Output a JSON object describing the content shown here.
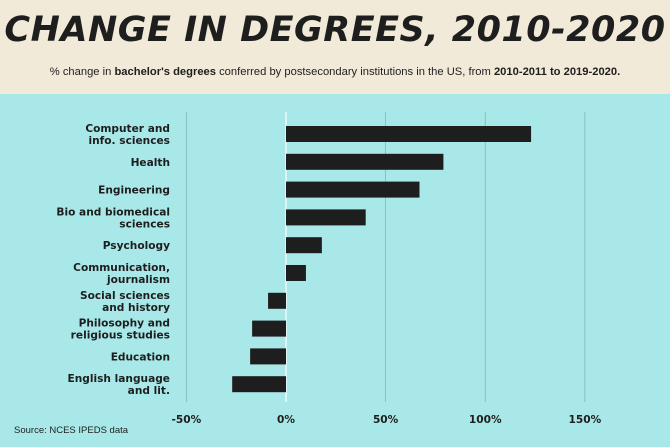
{
  "header": {
    "title": "CHANGE IN DEGREES, 2010-2020",
    "subtitle_pre": "% change in ",
    "subtitle_bold1": "bachelor's degrees",
    "subtitle_mid": " conferred by postsecondary institutions in the US, from ",
    "subtitle_bold2": "2010-2011 to 2019-2020."
  },
  "footer": {
    "source": "Source: NCES IPEDS data"
  },
  "colors": {
    "bar": "#1e1e1e",
    "plot_background": "#a9e8e8",
    "header_background": "#f1ead9",
    "zero_line": "#ffffff",
    "grid": "#7fb7b7"
  },
  "chart_data": {
    "type": "bar",
    "orientation": "horizontal",
    "categories": [
      [
        "Computer and",
        "info. sciences"
      ],
      [
        "Health"
      ],
      [
        "Engineering"
      ],
      [
        "Bio and biomedical",
        "sciences"
      ],
      [
        "Psychology"
      ],
      [
        "Communication,",
        "journalism"
      ],
      [
        "Social sciences",
        "and history"
      ],
      [
        "Philosophy and",
        "religious studies"
      ],
      [
        "Education"
      ],
      [
        "English language",
        "and lit."
      ]
    ],
    "values": [
      123,
      79,
      67,
      40,
      18,
      10,
      -9,
      -17,
      -18,
      -27
    ],
    "xlim": [
      -50,
      150
    ],
    "xticks": [
      -50,
      0,
      50,
      100,
      150
    ],
    "xtick_labels": [
      "-50%",
      "0%",
      "50%",
      "100%",
      "150%"
    ],
    "grid": true
  }
}
